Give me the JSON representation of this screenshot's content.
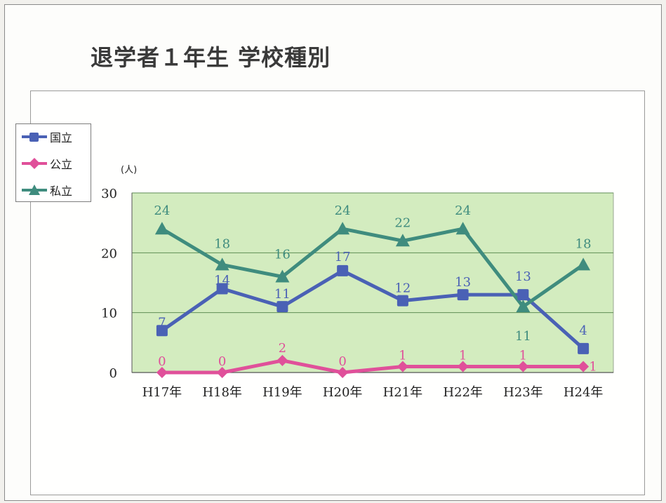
{
  "title": "退学者１年生 学校種別",
  "colors": {
    "kokuritsu": "#4a61b5",
    "kouritsu": "#e0509a",
    "shiritsu": "#3f8c7e",
    "plot_bg": "#d3ecbf",
    "grid": "#5f8e55"
  },
  "chart_data": {
    "type": "line",
    "title": "退学者１年生 学校種別",
    "unit_label": "(人)",
    "categories": [
      "H17年",
      "H18年",
      "H19年",
      "H20年",
      "H21年",
      "H22年",
      "H23年",
      "H24年"
    ],
    "ylim": [
      0,
      30
    ],
    "yticks": [
      0,
      10,
      20,
      30
    ],
    "grid": true,
    "legend_position": "left",
    "series": [
      {
        "name": "国立",
        "marker": "square",
        "color": "#4a61b5",
        "values": [
          7,
          14,
          11,
          17,
          12,
          13,
          13,
          4
        ]
      },
      {
        "name": "公立",
        "marker": "diamond",
        "color": "#e0509a",
        "values": [
          0,
          0,
          2,
          0,
          1,
          1,
          1,
          1
        ]
      },
      {
        "name": "私立",
        "marker": "triangle",
        "color": "#3f8c7e",
        "values": [
          24,
          18,
          16,
          24,
          22,
          24,
          11,
          18
        ]
      }
    ]
  }
}
